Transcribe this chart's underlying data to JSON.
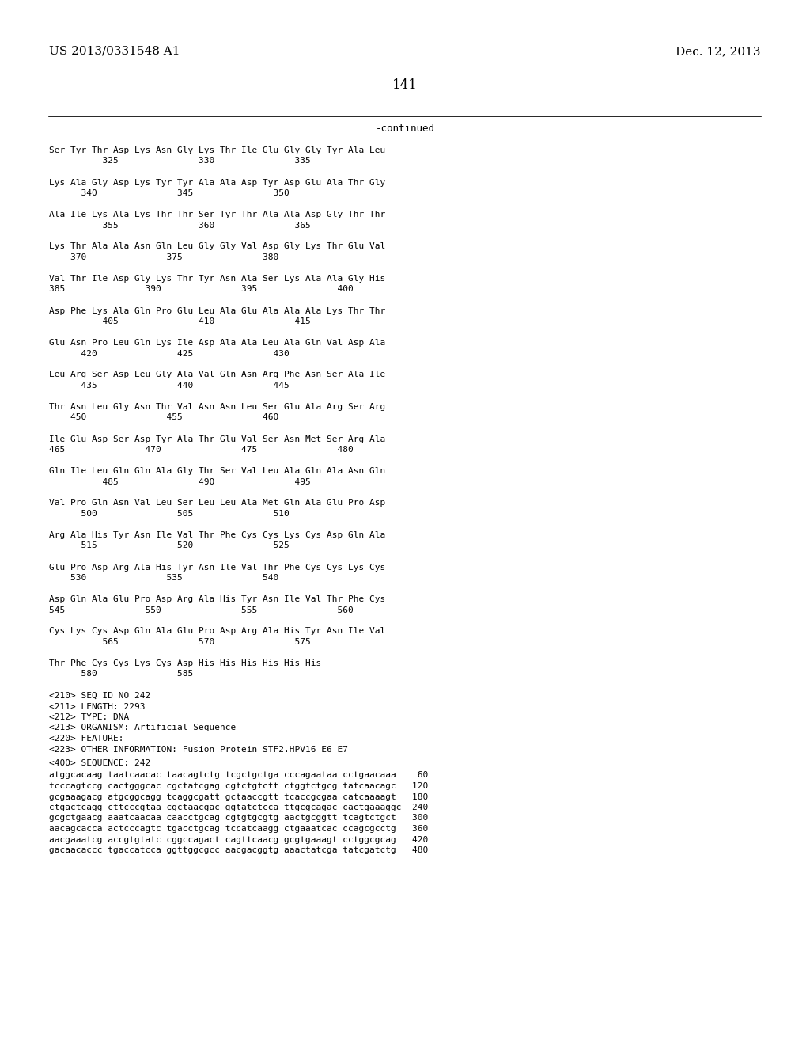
{
  "header_left": "US 2013/0331548 A1",
  "header_right": "Dec. 12, 2013",
  "page_number": "141",
  "continued_label": "-continued",
  "background_color": "#ffffff",
  "text_color": "#000000",
  "monospace_lines": [
    "Ser Tyr Thr Asp Lys Asn Gly Lys Thr Ile Glu Gly Gly Tyr Ala Leu",
    "          325               330               335",
    "",
    "Lys Ala Gly Asp Lys Tyr Tyr Ala Ala Asp Tyr Asp Glu Ala Thr Gly",
    "      340               345               350",
    "",
    "Ala Ile Lys Ala Lys Thr Thr Ser Tyr Thr Ala Ala Asp Gly Thr Thr",
    "          355               360               365",
    "",
    "Lys Thr Ala Ala Asn Gln Leu Gly Gly Val Asp Gly Lys Thr Glu Val",
    "    370               375               380",
    "",
    "Val Thr Ile Asp Gly Lys Thr Tyr Asn Ala Ser Lys Ala Ala Gly His",
    "385               390               395               400",
    "",
    "Asp Phe Lys Ala Gln Pro Glu Leu Ala Glu Ala Ala Ala Lys Thr Thr",
    "          405               410               415",
    "",
    "Glu Asn Pro Leu Gln Lys Ile Asp Ala Ala Leu Ala Gln Val Asp Ala",
    "      420               425               430",
    "",
    "Leu Arg Ser Asp Leu Gly Ala Val Gln Asn Arg Phe Asn Ser Ala Ile",
    "      435               440               445",
    "",
    "Thr Asn Leu Gly Asn Thr Val Asn Asn Leu Ser Glu Ala Arg Ser Arg",
    "    450               455               460",
    "",
    "Ile Glu Asp Ser Asp Tyr Ala Thr Glu Val Ser Asn Met Ser Arg Ala",
    "465               470               475               480",
    "",
    "Gln Ile Leu Gln Gln Ala Gly Thr Ser Val Leu Ala Gln Ala Asn Gln",
    "          485               490               495",
    "",
    "Val Pro Gln Asn Val Leu Ser Leu Leu Ala Met Gln Ala Glu Pro Asp",
    "      500               505               510",
    "",
    "Arg Ala His Tyr Asn Ile Val Thr Phe Cys Cys Lys Cys Asp Gln Ala",
    "      515               520               525",
    "",
    "Glu Pro Asp Arg Ala His Tyr Asn Ile Val Thr Phe Cys Cys Lys Cys",
    "    530               535               540",
    "",
    "Asp Gln Ala Glu Pro Asp Arg Ala His Tyr Asn Ile Val Thr Phe Cys",
    "545               550               555               560",
    "",
    "Cys Lys Cys Asp Gln Ala Glu Pro Asp Arg Ala His Tyr Asn Ile Val",
    "          565               570               575",
    "",
    "Thr Phe Cys Cys Lys Cys Asp His His His His His His",
    "      580               585"
  ],
  "metadata_lines": [
    "<210> SEQ ID NO 242",
    "<211> LENGTH: 2293",
    "<212> TYPE: DNA",
    "<213> ORGANISM: Artificial Sequence",
    "<220> FEATURE:",
    "<223> OTHER INFORMATION: Fusion Protein STF2.HPV16 E6 E7"
  ],
  "sequence_label": "<400> SEQUENCE: 242",
  "dna_lines": [
    "atggcacaag taatcaacac taacagtctg tcgctgctga cccagaataa cctgaacaaa    60",
    "tcccagtccg cactgggcac cgctatcgag cgtctgtctt ctggtctgcg tatcaacagc   120",
    "gcgaaagacg atgcggcagg tcaggcgatt gctaaccgtt tcaccgcgaa catcaaaagt   180",
    "ctgactcagg cttcccgtaa cgctaacgac ggtatctcca ttgcgcagac cactgaaaggc  240",
    "gcgctgaacg aaatcaacaa caacctgcag cgtgtgcgtg aactgcggtt tcagtctgct   300",
    "aacagcacca actcccagtc tgacctgcag tccatcaagg ctgaaatcac ccagcgcctg   360",
    "aacgaaatcg accgtgtatc cggccagact cagttcaacg gcgtgaaagt cctggcgcag   420",
    "gacaacaccc tgaccatcca ggttggcgcc aacgacggtg aaactatcga tatcgatctg   480"
  ]
}
